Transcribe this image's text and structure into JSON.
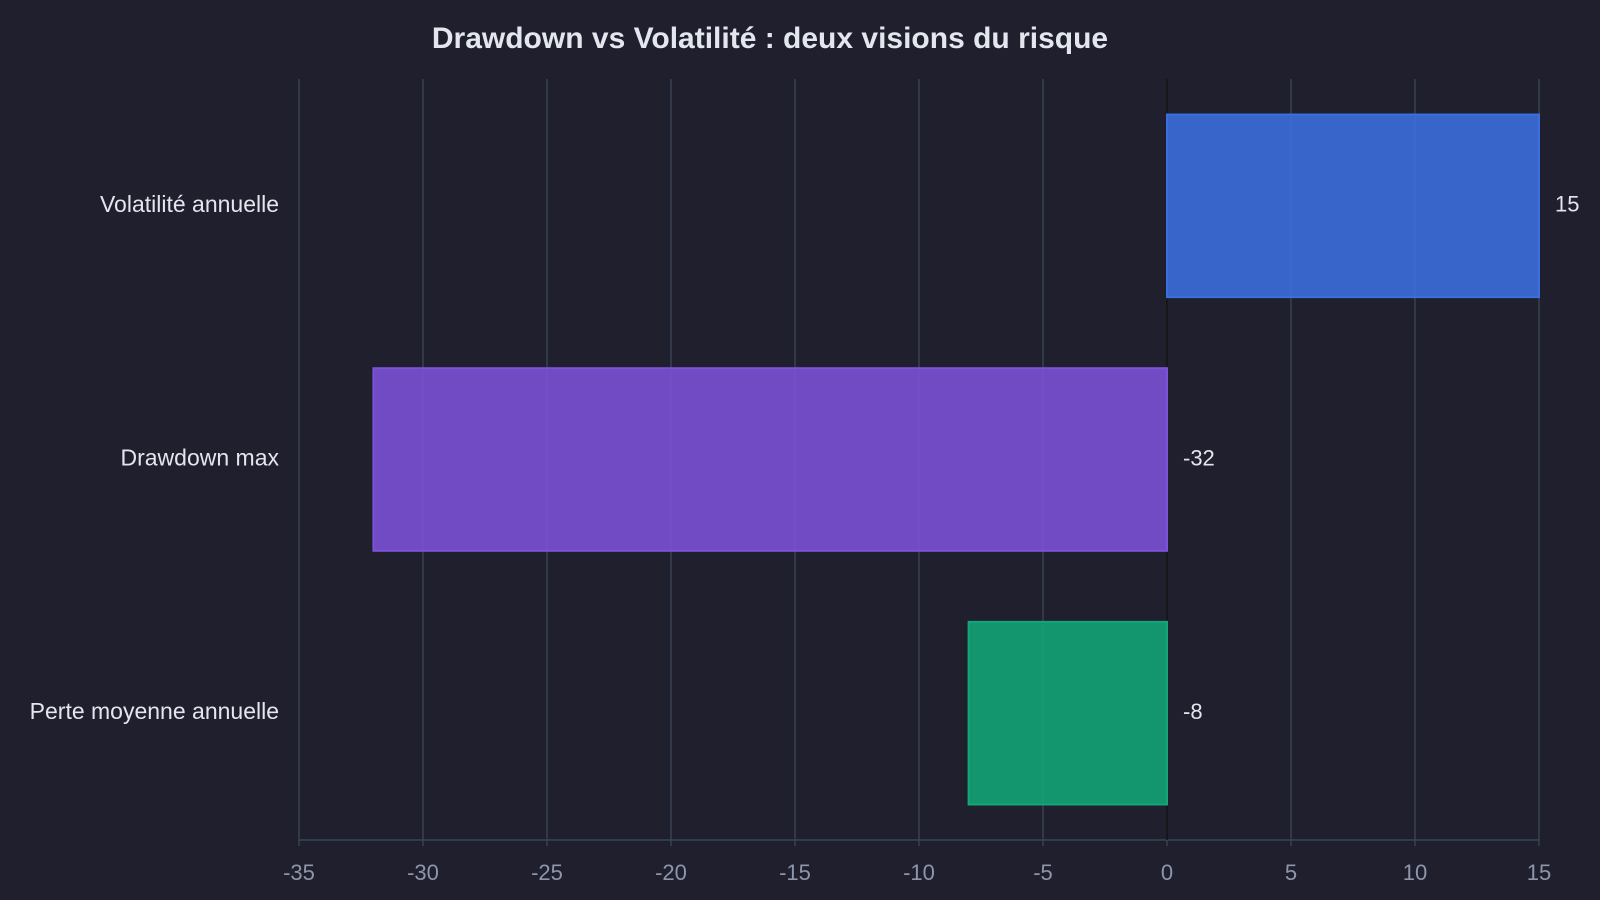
{
  "chart_data": {
    "type": "barh",
    "title": "Drawdown vs Volatilité : deux visions du risque",
    "categories": [
      "Volatilité annuelle",
      "Drawdown max",
      "Perte moyenne annuelle"
    ],
    "values": [
      15,
      -32,
      -8
    ],
    "colors": [
      "#3b6fe0",
      "#7c52d8",
      "#12a678"
    ],
    "xlim": [
      -35,
      15
    ],
    "xticks": [
      -35,
      -30,
      -25,
      -20,
      -15,
      -10,
      -5,
      0,
      5,
      10,
      15
    ],
    "grid": true
  }
}
